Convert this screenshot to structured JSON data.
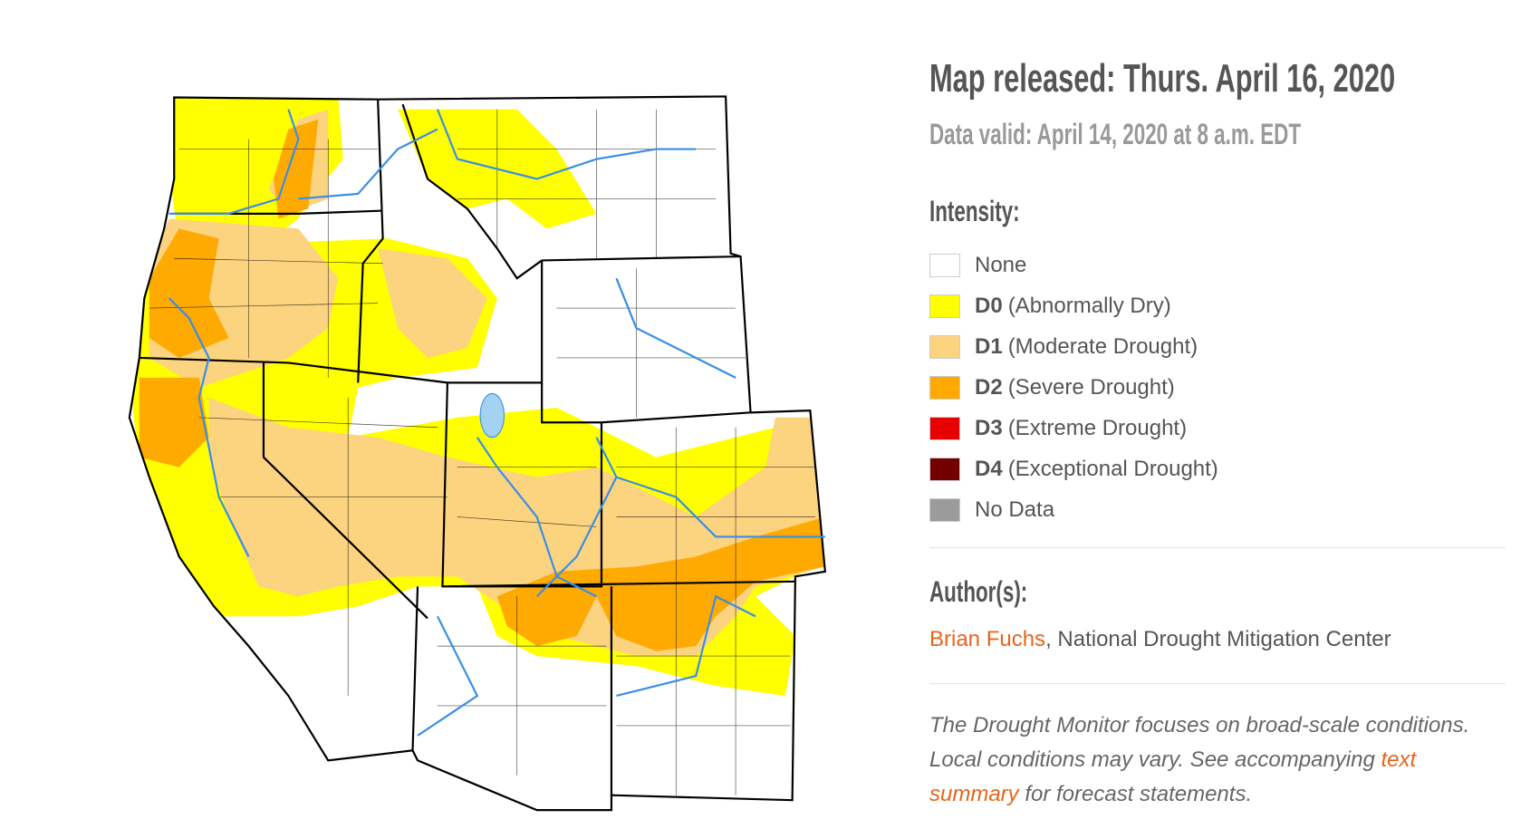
{
  "header": {
    "title": "Map released: Thurs. April 16, 2020",
    "subtitle": "Data valid: April 14, 2020 at 8 a.m. EDT"
  },
  "legend": {
    "title": "Intensity:",
    "items": [
      {
        "label": "None",
        "color": "#ffffff"
      },
      {
        "code": "D0",
        "label": "(Abnormally Dry)",
        "color": "#ffff00"
      },
      {
        "code": "D1",
        "label": "(Moderate Drought)",
        "color": "#fcd37f"
      },
      {
        "code": "D2",
        "label": "(Severe Drought)",
        "color": "#ffaa00"
      },
      {
        "code": "D3",
        "label": "(Extreme Drought)",
        "color": "#e60000"
      },
      {
        "code": "D4",
        "label": "(Exceptional Drought)",
        "color": "#730000"
      },
      {
        "label": "No Data",
        "color": "#9b9b9b"
      }
    ]
  },
  "authors": {
    "title": "Author(s):",
    "name": "Brian Fuchs",
    "affiliation": ", National Drought Mitigation Center"
  },
  "note": {
    "before": "The Drought Monitor focuses on broad-scale conditions. Local conditions may vary. See accompanying ",
    "link": "text summary",
    "after": " for forecast statements."
  }
}
